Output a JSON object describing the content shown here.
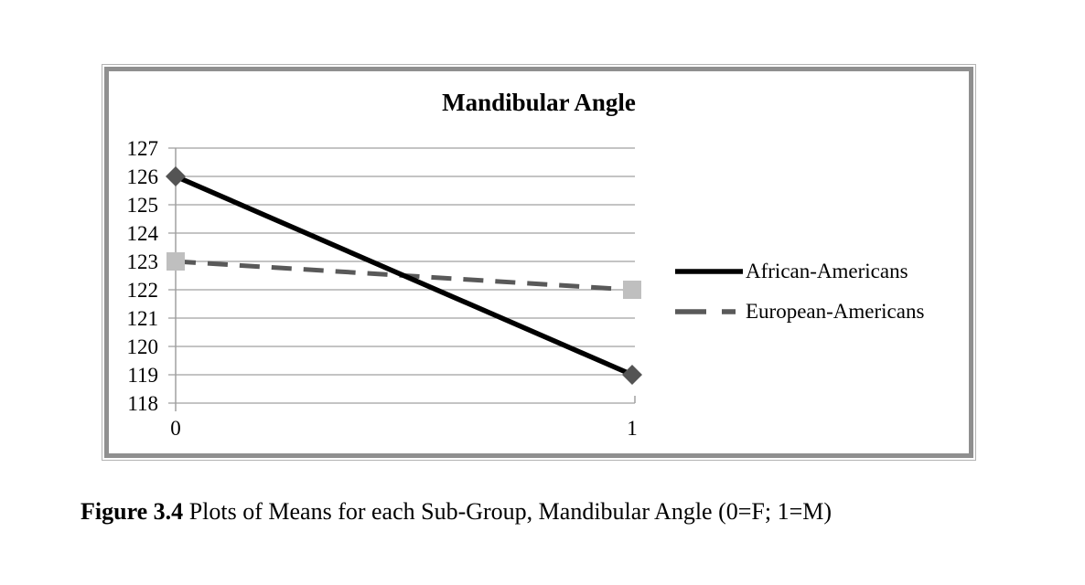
{
  "chart_data": {
    "type": "line",
    "title": "Mandibular Angle",
    "xlabel": "",
    "ylabel": "",
    "x_tick_labels": [
      "0",
      "1"
    ],
    "y_ticks": [
      118,
      119,
      120,
      121,
      122,
      123,
      124,
      125,
      126,
      127
    ],
    "ylim": [
      118,
      127
    ],
    "grid": true,
    "gridline_color": "#a0a0a0",
    "legend_position": "right",
    "series": [
      {
        "name": "African-Americans",
        "x": [
          0,
          1
        ],
        "values": [
          126,
          119
        ],
        "line_color": "#000000",
        "line_style": "solid",
        "line_width": 5.5,
        "marker": "diamond",
        "marker_color": "#545454"
      },
      {
        "name": "European-Americans",
        "x": [
          0,
          1
        ],
        "values": [
          123,
          122
        ],
        "line_color": "#595959",
        "line_style": "dashed",
        "line_width": 5,
        "marker": "square",
        "marker_color": "#bfbfbf"
      }
    ]
  },
  "caption": {
    "label": "Figure 3.4",
    "text": " Plots of Means for each Sub-Group, Mandibular Angle (0=F; 1=M)"
  }
}
